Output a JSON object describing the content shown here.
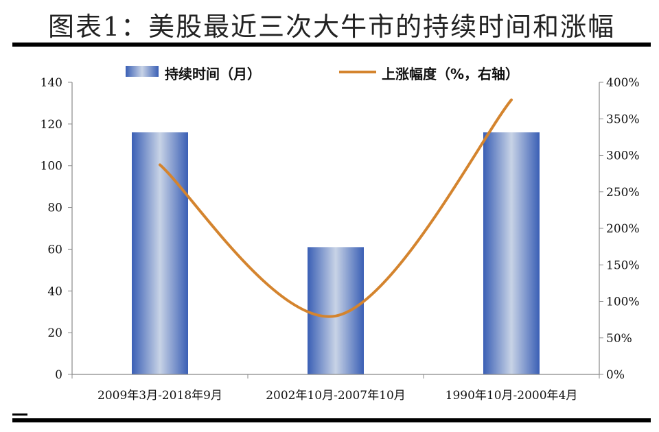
{
  "title": "图表1：美股最近三次大牛市的持续时间和涨幅",
  "footnote": "",
  "colors": {
    "bar": "#3a5fb5",
    "bar_highlight": "#c8d3e6",
    "line": "#d4842e",
    "axis": "#888888"
  },
  "chart_data": {
    "type": "bar",
    "categories": [
      "2009年3月-2018年9月",
      "2002年10月-2007年10月",
      "1990年10月-2000年4月"
    ],
    "series": [
      {
        "name": "持续时间（月）",
        "type": "bar",
        "axis": "left",
        "values": [
          116,
          61,
          116
        ]
      },
      {
        "name": "上涨幅度（%，右轴）",
        "type": "line",
        "axis": "right",
        "values": [
          287,
          80,
          376
        ]
      }
    ],
    "y_left": {
      "min": 0,
      "max": 140,
      "ticks": [
        "0",
        "20",
        "40",
        "60",
        "80",
        "100",
        "120",
        "140"
      ]
    },
    "y_right": {
      "min": 0,
      "max": 400,
      "ticks": [
        "0%",
        "50%",
        "100%",
        "150%",
        "200%",
        "250%",
        "300%",
        "350%",
        "400%"
      ]
    },
    "grid": false,
    "legend": "top-center"
  }
}
